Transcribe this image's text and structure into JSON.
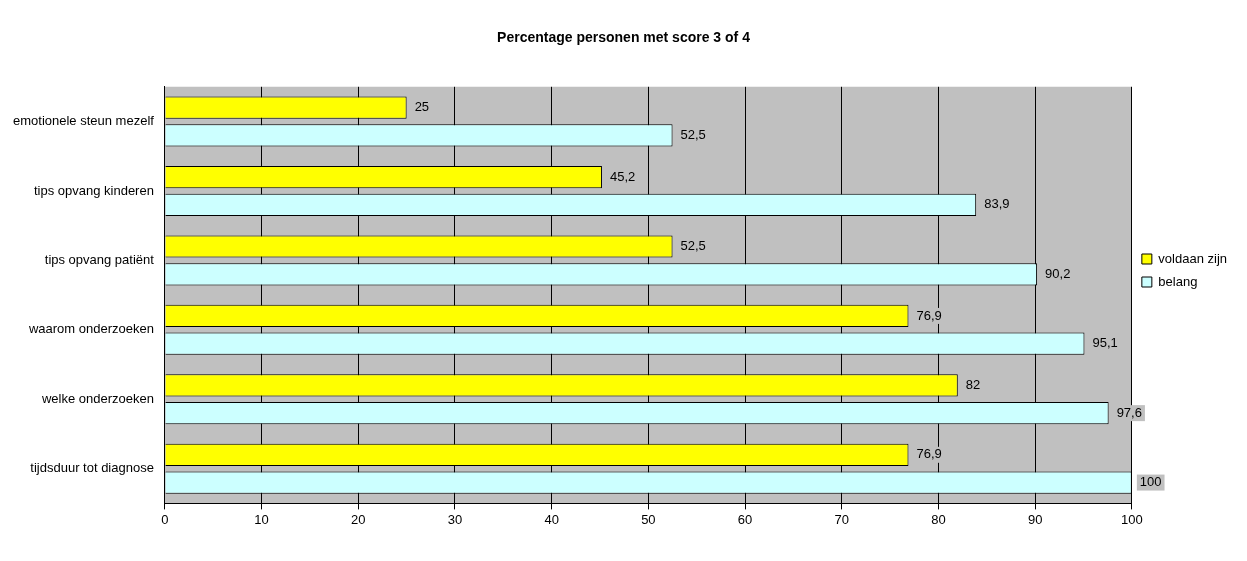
{
  "chart_data": {
    "type": "bar",
    "orientation": "horizontal",
    "title": "Percentage personen met score 3 of 4",
    "categories": [
      "emotionele steun mezelf",
      "tips opvang kinderen",
      "tips opvang patiënt",
      "waarom onderzoeken",
      "welke onderzoeken",
      "tijdsduur tot diagnose"
    ],
    "series": [
      {
        "name": "voldaan zijn",
        "color": "#ffff00",
        "values": [
          25,
          45.2,
          52.5,
          76.9,
          82,
          76.9
        ],
        "value_labels": [
          "25",
          "45,2",
          "52,5",
          "76,9",
          "82",
          "76,9"
        ]
      },
      {
        "name": "belang",
        "color": "#ccffff",
        "values": [
          52.5,
          83.9,
          90.2,
          95.1,
          97.6,
          100
        ],
        "value_labels": [
          "52,5",
          "83,9",
          "90,2",
          "95,1",
          "97,6",
          "100"
        ]
      }
    ],
    "xlim": [
      0,
      100
    ],
    "xticks": [
      0,
      10,
      20,
      30,
      40,
      50,
      60,
      70,
      80,
      90,
      100
    ],
    "grid": "x",
    "legend": "right"
  }
}
